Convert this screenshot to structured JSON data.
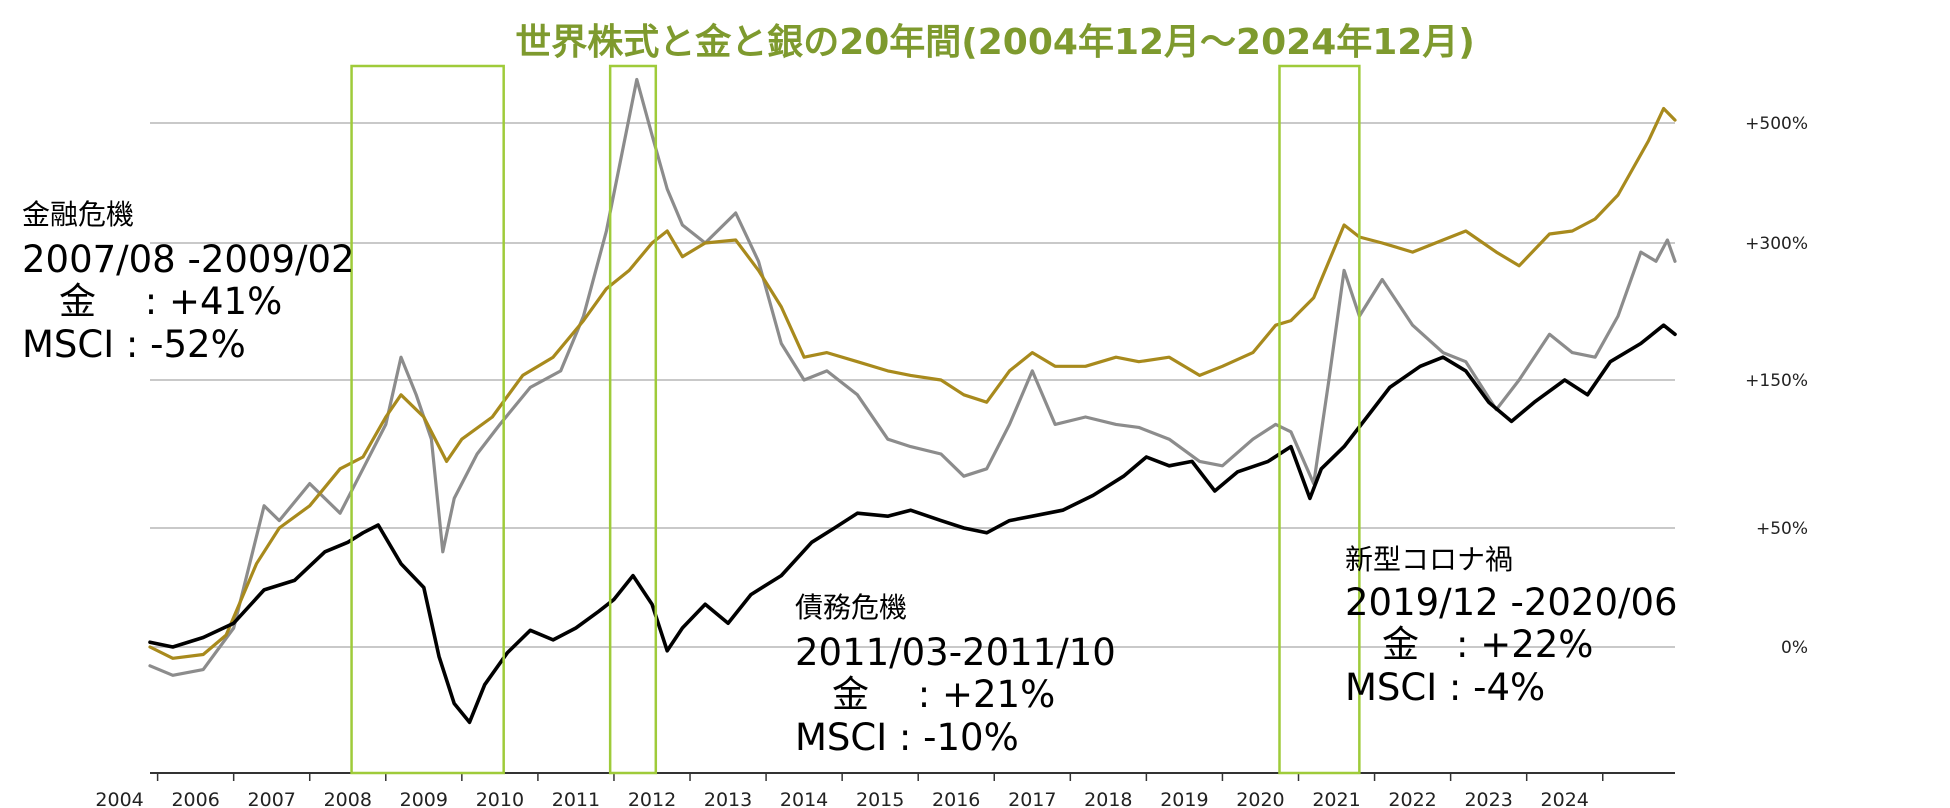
{
  "chart_data": {
    "type": "line",
    "title": "世界株式と金と銀の20年間(2004年12月～2024年12月)",
    "x_range": [
      2004.9,
      2024.95
    ],
    "x_tick_labels": [
      "2004",
      "2006",
      "2007",
      "2008",
      "2009",
      "2010",
      "2011",
      "2012",
      "2013",
      "2014",
      "2015",
      "2016",
      "2017",
      "2018",
      "2019",
      "2020",
      "2021",
      "2022",
      "2023",
      "2024"
    ],
    "y_tick_labels": [
      "+500%",
      "+300%",
      "+150%",
      "+50%",
      "0%"
    ],
    "grid": true,
    "colors": {
      "title": "#7e9a2e",
      "gold": "#a88a1d",
      "silver": "#8c8c8c",
      "msci": "#000000",
      "highlight": "#9fcb3a",
      "grid": "#c9c9c9"
    },
    "series": [
      {
        "key": "gold",
        "points": [
          [
            2004.9,
            0
          ],
          [
            2005.2,
            -6
          ],
          [
            2005.6,
            -4
          ],
          [
            2005.9,
            5
          ],
          [
            2006.3,
            35
          ],
          [
            2006.6,
            50
          ],
          [
            2007.0,
            65
          ],
          [
            2007.4,
            90
          ],
          [
            2007.7,
            98
          ],
          [
            2008.0,
            125
          ],
          [
            2008.2,
            140
          ],
          [
            2008.5,
            125
          ],
          [
            2008.8,
            95
          ],
          [
            2009.0,
            110
          ],
          [
            2009.4,
            125
          ],
          [
            2009.8,
            155
          ],
          [
            2010.2,
            175
          ],
          [
            2010.6,
            215
          ],
          [
            2010.9,
            250
          ],
          [
            2011.2,
            270
          ],
          [
            2011.5,
            300
          ],
          [
            2011.7,
            320
          ],
          [
            2011.9,
            285
          ],
          [
            2012.2,
            300
          ],
          [
            2012.6,
            305
          ],
          [
            2012.9,
            270
          ],
          [
            2013.2,
            230
          ],
          [
            2013.5,
            175
          ],
          [
            2013.8,
            180
          ],
          [
            2014.2,
            170
          ],
          [
            2014.6,
            160
          ],
          [
            2014.9,
            155
          ],
          [
            2015.3,
            150
          ],
          [
            2015.6,
            140
          ],
          [
            2015.9,
            135
          ],
          [
            2016.2,
            160
          ],
          [
            2016.5,
            180
          ],
          [
            2016.8,
            165
          ],
          [
            2017.2,
            165
          ],
          [
            2017.6,
            175
          ],
          [
            2017.9,
            170
          ],
          [
            2018.3,
            175
          ],
          [
            2018.7,
            155
          ],
          [
            2019.0,
            165
          ],
          [
            2019.4,
            180
          ],
          [
            2019.7,
            210
          ],
          [
            2019.9,
            215
          ],
          [
            2020.2,
            240
          ],
          [
            2020.6,
            330
          ],
          [
            2020.8,
            310
          ],
          [
            2021.1,
            300
          ],
          [
            2021.5,
            290
          ],
          [
            2021.9,
            305
          ],
          [
            2022.2,
            320
          ],
          [
            2022.6,
            290
          ],
          [
            2022.9,
            275
          ],
          [
            2023.3,
            315
          ],
          [
            2023.6,
            320
          ],
          [
            2023.9,
            340
          ],
          [
            2024.2,
            380
          ],
          [
            2024.6,
            470
          ],
          [
            2024.8,
            525
          ],
          [
            2024.95,
            505
          ]
        ]
      },
      {
        "key": "silver",
        "points": [
          [
            2004.9,
            -10
          ],
          [
            2005.2,
            -15
          ],
          [
            2005.6,
            -12
          ],
          [
            2006.0,
            8
          ],
          [
            2006.4,
            65
          ],
          [
            2006.6,
            55
          ],
          [
            2007.0,
            80
          ],
          [
            2007.4,
            60
          ],
          [
            2007.7,
            90
          ],
          [
            2008.0,
            120
          ],
          [
            2008.2,
            175
          ],
          [
            2008.4,
            140
          ],
          [
            2008.6,
            110
          ],
          [
            2008.75,
            40
          ],
          [
            2008.9,
            70
          ],
          [
            2009.2,
            100
          ],
          [
            2009.5,
            120
          ],
          [
            2009.9,
            145
          ],
          [
            2010.3,
            160
          ],
          [
            2010.6,
            220
          ],
          [
            2010.9,
            320
          ],
          [
            2011.3,
            575
          ],
          [
            2011.5,
            480
          ],
          [
            2011.7,
            390
          ],
          [
            2011.9,
            330
          ],
          [
            2012.2,
            300
          ],
          [
            2012.6,
            350
          ],
          [
            2012.9,
            280
          ],
          [
            2013.2,
            190
          ],
          [
            2013.5,
            150
          ],
          [
            2013.8,
            160
          ],
          [
            2014.2,
            140
          ],
          [
            2014.6,
            110
          ],
          [
            2014.9,
            105
          ],
          [
            2015.3,
            100
          ],
          [
            2015.6,
            85
          ],
          [
            2015.9,
            90
          ],
          [
            2016.2,
            120
          ],
          [
            2016.5,
            160
          ],
          [
            2016.8,
            120
          ],
          [
            2017.2,
            125
          ],
          [
            2017.6,
            120
          ],
          [
            2017.9,
            118
          ],
          [
            2018.3,
            110
          ],
          [
            2018.7,
            95
          ],
          [
            2019.0,
            92
          ],
          [
            2019.4,
            110
          ],
          [
            2019.7,
            120
          ],
          [
            2019.9,
            115
          ],
          [
            2020.2,
            80
          ],
          [
            2020.4,
            150
          ],
          [
            2020.6,
            270
          ],
          [
            2020.8,
            220
          ],
          [
            2021.1,
            260
          ],
          [
            2021.5,
            210
          ],
          [
            2021.9,
            180
          ],
          [
            2022.2,
            170
          ],
          [
            2022.6,
            130
          ],
          [
            2022.9,
            150
          ],
          [
            2023.3,
            200
          ],
          [
            2023.6,
            180
          ],
          [
            2023.9,
            175
          ],
          [
            2024.2,
            220
          ],
          [
            2024.5,
            290
          ],
          [
            2024.7,
            280
          ],
          [
            2024.85,
            305
          ],
          [
            2024.95,
            280
          ]
        ]
      },
      {
        "key": "msci",
        "points": [
          [
            2004.9,
            2
          ],
          [
            2005.2,
            0
          ],
          [
            2005.6,
            4
          ],
          [
            2006.0,
            10
          ],
          [
            2006.4,
            24
          ],
          [
            2006.8,
            28
          ],
          [
            2007.2,
            40
          ],
          [
            2007.5,
            44
          ],
          [
            2007.7,
            48
          ],
          [
            2007.9,
            52
          ],
          [
            2008.2,
            35
          ],
          [
            2008.5,
            25
          ],
          [
            2008.7,
            -5
          ],
          [
            2008.9,
            -30
          ],
          [
            2009.1,
            -40
          ],
          [
            2009.3,
            -20
          ],
          [
            2009.6,
            -3
          ],
          [
            2009.9,
            7
          ],
          [
            2010.2,
            3
          ],
          [
            2010.5,
            8
          ],
          [
            2010.8,
            15
          ],
          [
            2011.0,
            20
          ],
          [
            2011.25,
            30
          ],
          [
            2011.5,
            18
          ],
          [
            2011.7,
            -2
          ],
          [
            2011.9,
            8
          ],
          [
            2012.2,
            18
          ],
          [
            2012.5,
            10
          ],
          [
            2012.8,
            22
          ],
          [
            2013.2,
            30
          ],
          [
            2013.6,
            44
          ],
          [
            2013.9,
            50
          ],
          [
            2014.2,
            60
          ],
          [
            2014.6,
            58
          ],
          [
            2014.9,
            62
          ],
          [
            2015.3,
            55
          ],
          [
            2015.6,
            50
          ],
          [
            2015.9,
            48
          ],
          [
            2016.2,
            55
          ],
          [
            2016.5,
            58
          ],
          [
            2016.9,
            62
          ],
          [
            2017.3,
            72
          ],
          [
            2017.7,
            85
          ],
          [
            2018.0,
            98
          ],
          [
            2018.3,
            92
          ],
          [
            2018.6,
            95
          ],
          [
            2018.9,
            75
          ],
          [
            2019.2,
            88
          ],
          [
            2019.6,
            95
          ],
          [
            2019.9,
            105
          ],
          [
            2020.15,
            70
          ],
          [
            2020.3,
            90
          ],
          [
            2020.6,
            105
          ],
          [
            2020.9,
            125
          ],
          [
            2021.2,
            145
          ],
          [
            2021.6,
            165
          ],
          [
            2021.9,
            175
          ],
          [
            2022.2,
            160
          ],
          [
            2022.5,
            135
          ],
          [
            2022.8,
            122
          ],
          [
            2023.1,
            135
          ],
          [
            2023.5,
            150
          ],
          [
            2023.8,
            140
          ],
          [
            2024.1,
            170
          ],
          [
            2024.5,
            190
          ],
          [
            2024.8,
            210
          ],
          [
            2024.95,
            200
          ]
        ]
      }
    ],
    "highlights": [
      {
        "x0": 2007.55,
        "x1": 2009.55,
        "period": "2007/08 -2009/02"
      },
      {
        "x0": 2010.95,
        "x1": 2011.55,
        "period": "2011/03-2011/10"
      },
      {
        "x0": 2019.75,
        "x1": 2020.8,
        "period": "2019/12 -2020/06"
      }
    ],
    "annotations": [
      {
        "title": "金融危機",
        "period": "2007/08 -2009/02",
        "gold_line": "　金　 : +41%",
        "msci_line": "MSCI : -52%"
      },
      {
        "title": "債務危機",
        "period": "2011/03-2011/10",
        "gold_line": "　金　  : +21%",
        "msci_line": "MSCI : -10%"
      },
      {
        "title": "新型コロナ禍",
        "period": "2019/12 -2020/06",
        "gold_line": "　金　: +22%",
        "msci_line": "MSCI : -4%"
      }
    ]
  }
}
